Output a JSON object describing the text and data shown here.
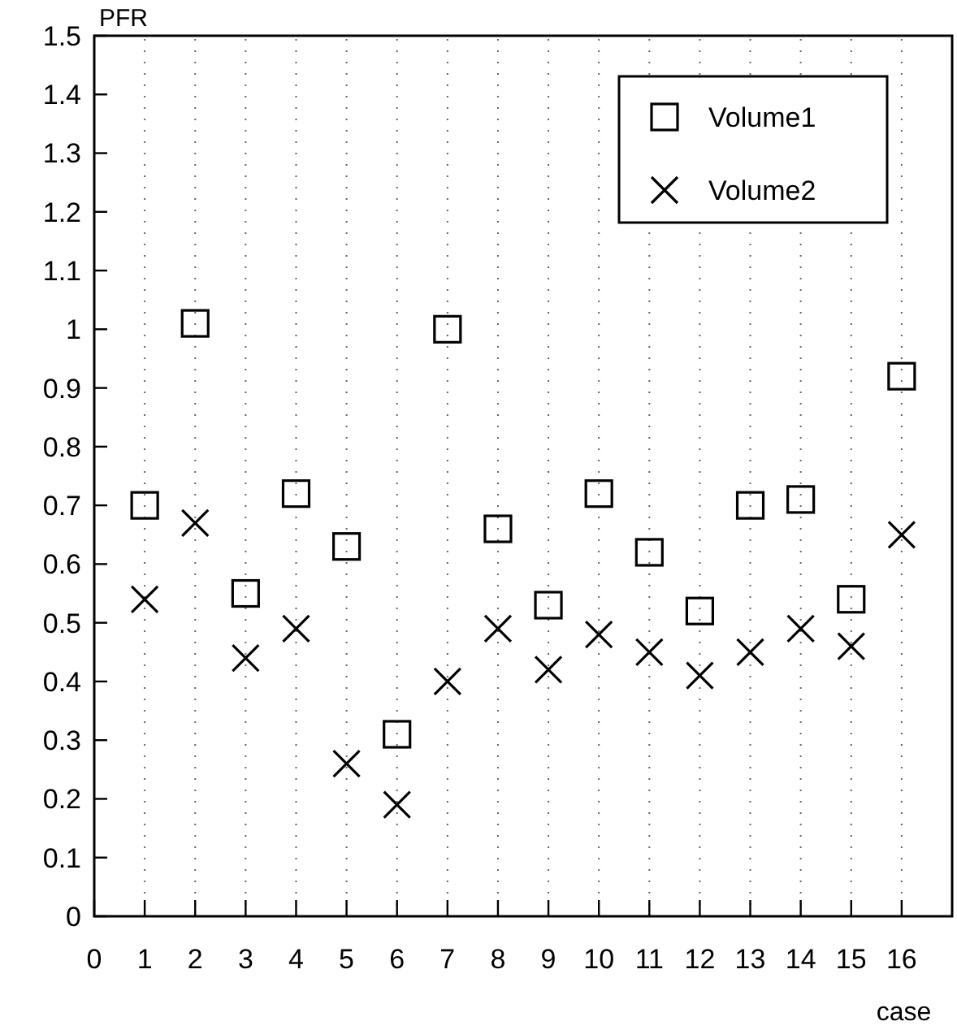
{
  "chart_data": {
    "type": "scatter",
    "ylabel": "PFR",
    "xlabel": "case",
    "x": [
      1,
      2,
      3,
      4,
      5,
      6,
      7,
      8,
      9,
      10,
      11,
      12,
      13,
      14,
      15,
      16
    ],
    "series": [
      {
        "name": "Volume1",
        "color": "#000000",
        "marker": "square",
        "values": [
          0.7,
          1.01,
          0.55,
          0.72,
          0.63,
          0.31,
          1.0,
          0.66,
          0.53,
          0.72,
          0.62,
          0.52,
          0.7,
          0.71,
          0.54,
          0.92
        ]
      },
      {
        "name": "Volume2",
        "color": "#000000",
        "marker": "cross",
        "values": [
          0.54,
          0.67,
          0.44,
          0.49,
          0.26,
          0.19,
          0.4,
          0.49,
          0.42,
          0.48,
          0.45,
          0.41,
          0.45,
          0.49,
          0.46,
          0.65
        ]
      }
    ],
    "xlim": [
      0,
      17
    ],
    "xticks": [
      0,
      1,
      2,
      3,
      4,
      5,
      6,
      7,
      8,
      9,
      10,
      11,
      12,
      13,
      14,
      15,
      16
    ],
    "ylim": [
      0,
      1.5
    ],
    "yticks": [
      0,
      0.1,
      0.2,
      0.3,
      0.4,
      0.5,
      0.6,
      0.7,
      0.8,
      0.9,
      1,
      1.1,
      1.2,
      1.3,
      1.4,
      1.5
    ],
    "grid": "x",
    "legend": "top right"
  }
}
